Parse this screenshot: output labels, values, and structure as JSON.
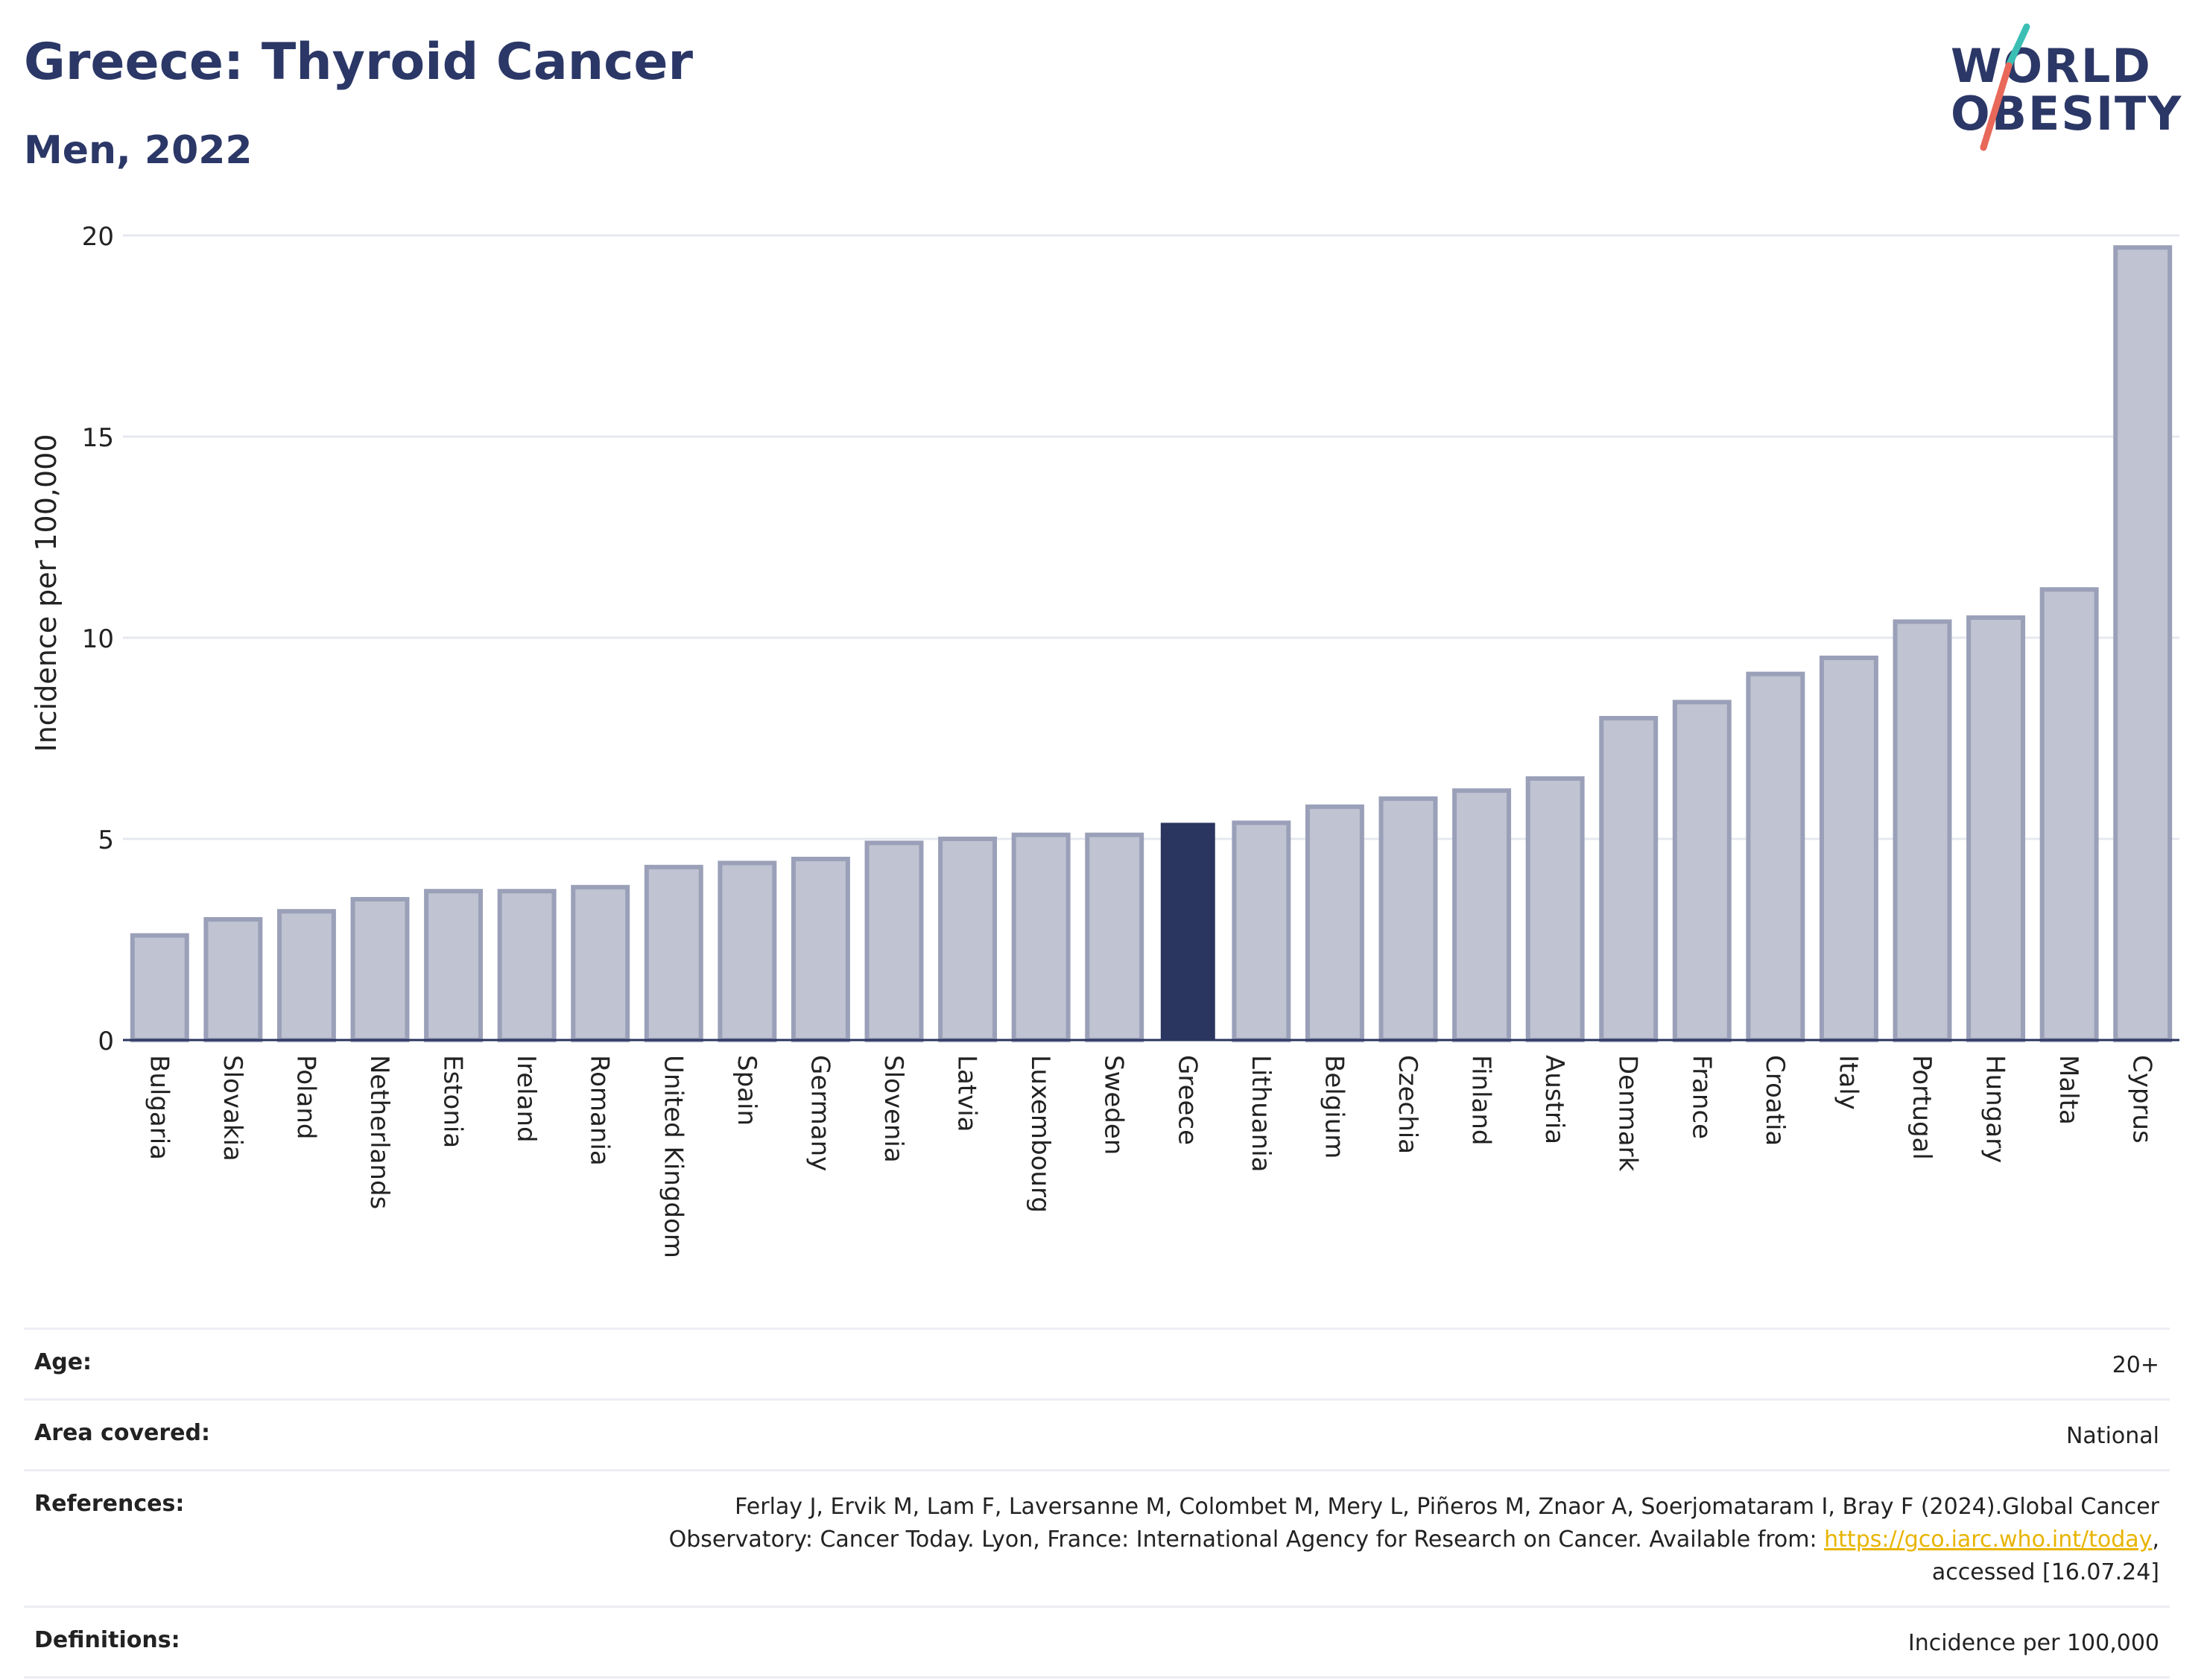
{
  "header": {
    "title": "Greece: Thyroid Cancer",
    "subtitle": "Men, 2022",
    "logo_line1": "WORLD",
    "logo_line2": "OBESITY"
  },
  "colors": {
    "bar": "#bfc3d2",
    "bar_border": "#9aa0b8",
    "highlight": "#2a3560",
    "grid": "#e6e8ef",
    "title": "#2b3766",
    "link": "#e8b400",
    "logo_teal": "#3bbfb5",
    "logo_coral": "#e8685a"
  },
  "chart_data": {
    "type": "bar",
    "title": "Greece: Thyroid Cancer",
    "subtitle": "Men, 2022",
    "ylabel": "Incidence per 100,000",
    "xlabel": "",
    "ylim": [
      0,
      20
    ],
    "yticks": [
      0,
      5,
      10,
      15,
      20
    ],
    "grid": true,
    "highlight": "Greece",
    "categories": [
      "Bulgaria",
      "Slovakia",
      "Poland",
      "Netherlands",
      "Estonia",
      "Ireland",
      "Romania",
      "United Kingdom",
      "Spain",
      "Germany",
      "Slovenia",
      "Latvia",
      "Luxembourg",
      "Sweden",
      "Greece",
      "Lithuania",
      "Belgium",
      "Czechia",
      "Finland",
      "Austria",
      "Denmark",
      "France",
      "Croatia",
      "Italy",
      "Portugal",
      "Hungary",
      "Malta",
      "Cyprus"
    ],
    "values": [
      2.6,
      3.0,
      3.2,
      3.5,
      3.7,
      3.7,
      3.8,
      4.3,
      4.4,
      4.5,
      4.9,
      5.0,
      5.1,
      5.1,
      5.4,
      5.4,
      5.8,
      6.0,
      6.2,
      6.5,
      8.0,
      8.4,
      9.1,
      9.5,
      10.4,
      10.5,
      11.2,
      19.7
    ]
  },
  "info": {
    "age_label": "Age:",
    "age_value": "20+",
    "area_label": "Area covered:",
    "area_value": "National",
    "references_label": "References:",
    "references_line1": "Ferlay J, Ervik M, Lam F, Laversanne M, Colombet M, Mery L, Piñeros M, Znaor A, Soerjomataram I, Bray F (2024).Global Cancer",
    "references_line2": "Observatory: Cancer Today. Lyon, France: International Agency for Research on Cancer. Available from:",
    "references_link": "https://gco.iarc.who.int/today",
    "references_line3": "accessed [16.07.24]",
    "definitions_label": "Definitions:",
    "definitions_value": "Incidence per 100,000"
  }
}
